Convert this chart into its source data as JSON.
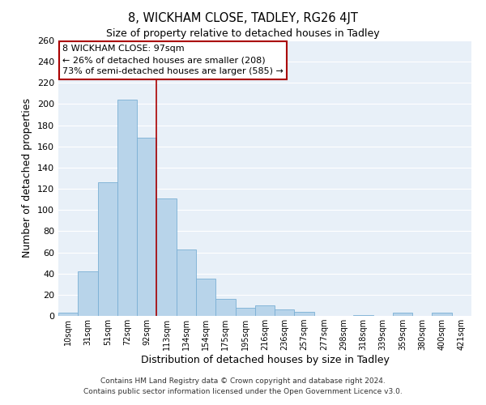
{
  "title": "8, WICKHAM CLOSE, TADLEY, RG26 4JT",
  "subtitle": "Size of property relative to detached houses in Tadley",
  "xlabel": "Distribution of detached houses by size in Tadley",
  "ylabel": "Number of detached properties",
  "bar_labels": [
    "10sqm",
    "31sqm",
    "51sqm",
    "72sqm",
    "92sqm",
    "113sqm",
    "134sqm",
    "154sqm",
    "175sqm",
    "195sqm",
    "216sqm",
    "236sqm",
    "257sqm",
    "277sqm",
    "298sqm",
    "318sqm",
    "339sqm",
    "359sqm",
    "380sqm",
    "400sqm",
    "421sqm"
  ],
  "bar_values": [
    3,
    42,
    126,
    204,
    168,
    111,
    63,
    35,
    16,
    8,
    10,
    6,
    4,
    0,
    0,
    1,
    0,
    3,
    0,
    3,
    0
  ],
  "bar_color": "#b8d4ea",
  "bar_edge_color": "#7aafd4",
  "vline_x_index": 4.5,
  "vline_color": "#aa0000",
  "annotation_title": "8 WICKHAM CLOSE: 97sqm",
  "annotation_line1": "← 26% of detached houses are smaller (208)",
  "annotation_line2": "73% of semi-detached houses are larger (585) →",
  "box_facecolor": "#ffffff",
  "box_edgecolor": "#aa0000",
  "footer1": "Contains HM Land Registry data © Crown copyright and database right 2024.",
  "footer2": "Contains public sector information licensed under the Open Government Licence v3.0.",
  "ylim": [
    0,
    260
  ],
  "yticks": [
    0,
    20,
    40,
    60,
    80,
    100,
    120,
    140,
    160,
    180,
    200,
    220,
    240,
    260
  ],
  "bg_color": "#e8f0f8",
  "figsize": [
    6.0,
    5.0
  ],
  "dpi": 100
}
